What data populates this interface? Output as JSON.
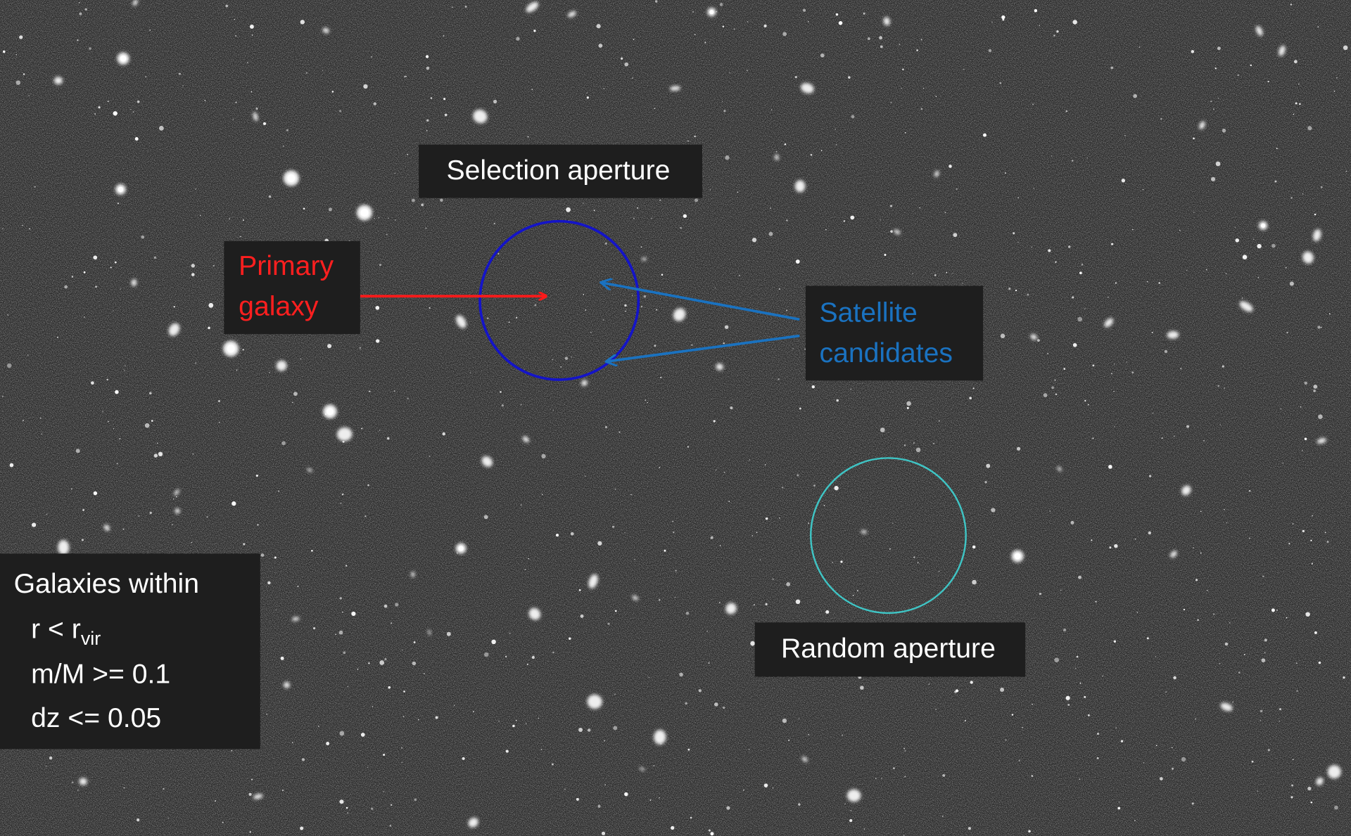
{
  "labels": {
    "selection_aperture": "Selection aperture",
    "primary_galaxy": [
      "Primary",
      "galaxy"
    ],
    "satellite_candidates": [
      "Satellite",
      "candidates"
    ],
    "random_aperture": "Random aperture",
    "criteria": {
      "title": "Galaxies within",
      "radius": {
        "text": "r < r",
        "subscript": "vir"
      },
      "mass_ratio": "m/M >= 0.1",
      "redshift": "dz <= 0.05"
    }
  }
}
